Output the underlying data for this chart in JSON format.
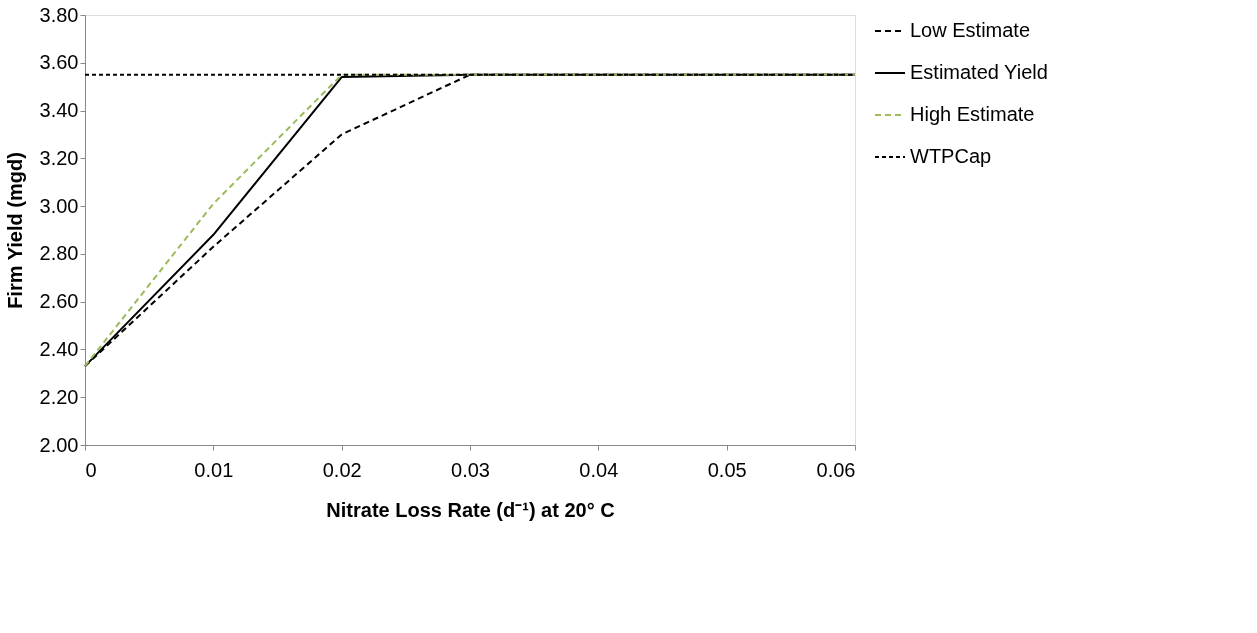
{
  "chart_data": {
    "type": "line",
    "xlabel": "Nitrate Loss Rate (d⁻¹) at 20° C",
    "ylabel": "Firm Yield (mgd)",
    "x": [
      0,
      0.01,
      0.02,
      0.03,
      0.04,
      0.05,
      0.06
    ],
    "series": [
      {
        "name": "Low Estimate",
        "color": "#000000",
        "line_style": "dashed",
        "values": [
          2.33,
          2.83,
          3.3,
          3.55,
          3.55,
          3.55,
          3.55
        ]
      },
      {
        "name": "Estimated Yield",
        "color": "#000000",
        "line_style": "solid",
        "values": [
          2.33,
          2.88,
          3.54,
          3.55,
          3.55,
          3.55,
          3.55
        ]
      },
      {
        "name": "High Estimate",
        "color": "#9bbb59",
        "line_style": "dashed",
        "values": [
          2.33,
          3.01,
          3.55,
          3.55,
          3.55,
          3.55,
          3.55
        ]
      },
      {
        "name": "WTPCap",
        "color": "#000000",
        "line_style": "dashed",
        "x": [
          0,
          0.06
        ],
        "values": [
          3.55,
          3.55
        ]
      }
    ],
    "xlim": [
      0,
      0.06
    ],
    "xticks": [
      0,
      0.01,
      0.02,
      0.03,
      0.04,
      0.05,
      0.06
    ],
    "ylim": [
      2.0,
      3.8
    ],
    "yticks": [
      {
        "value": 2.0,
        "label": "2.00"
      },
      {
        "value": 2.2,
        "label": "2.20"
      },
      {
        "value": 2.4,
        "label": "2.40"
      },
      {
        "value": 2.6,
        "label": "2.60"
      },
      {
        "value": 2.8,
        "label": "2.80"
      },
      {
        "value": 3.0,
        "label": "3.00"
      },
      {
        "value": 3.2,
        "label": "3.20"
      },
      {
        "value": 3.4,
        "label": "3.40"
      },
      {
        "value": 3.6,
        "label": "3.60"
      },
      {
        "value": 3.8,
        "label": "3.80"
      }
    ],
    "grid": false,
    "legend": "right",
    "marker": "none"
  }
}
